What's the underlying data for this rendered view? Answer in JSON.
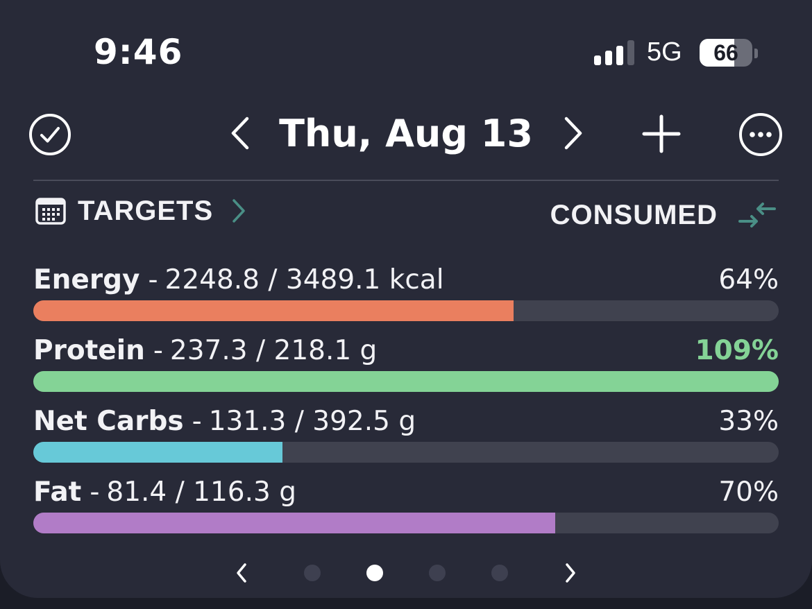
{
  "status_bar": {
    "time": "9:46",
    "network": "5G",
    "battery": "66",
    "battery_level_percent": 66,
    "signal_bars_filled": 3,
    "signal_bars_total": 4
  },
  "header": {
    "date": "Thu, Aug 13",
    "icons": {
      "complete": "check-circle-icon",
      "prev": "chevron-left-icon",
      "next": "chevron-right-icon",
      "add": "plus-icon",
      "more": "more-circle-icon"
    }
  },
  "summary": {
    "targets_label": "TARGETS",
    "consumed_label": "CONSUMED",
    "icons": {
      "targets": "calendar-icon",
      "targets_arrow": "chevron-right-icon",
      "swap": "swap-arrows-icon"
    },
    "accent_color": "#4a8f86"
  },
  "nutrients": [
    {
      "name": "Energy",
      "separator": "-",
      "value": "2248.8 / 3489.1 kcal",
      "percent": "64%",
      "progress": 0.644,
      "color": "#ea7f5f",
      "percent_color": "#f2f2f5"
    },
    {
      "name": "Protein",
      "separator": "-",
      "value": "237.3 / 218.1 g",
      "percent": "109%",
      "progress": 1.0,
      "color": "#84d396",
      "percent_color": "#84d396"
    },
    {
      "name": "Net Carbs",
      "separator": "-",
      "value": "131.3 / 392.5 g",
      "percent": "33%",
      "progress": 0.334,
      "color": "#67c9d8",
      "percent_color": "#f2f2f5"
    },
    {
      "name": "Fat",
      "separator": "-",
      "value": "81.4 / 116.3 g",
      "percent": "70%",
      "progress": 0.7,
      "color": "#b17cc7",
      "percent_color": "#f2f2f5"
    }
  ],
  "pager": {
    "page_count": 4,
    "active_index": 1,
    "icons": {
      "prev": "chevron-left-icon",
      "next": "chevron-right-icon"
    }
  }
}
